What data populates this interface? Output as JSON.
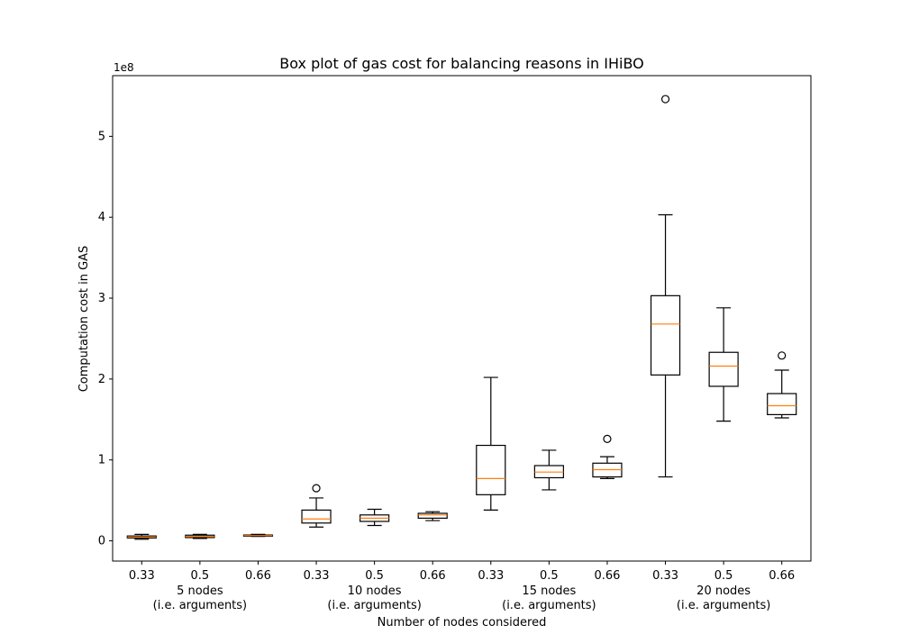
{
  "chart_data": {
    "type": "box",
    "title": "Box plot of gas cost for balancing reasons in IHiBO",
    "xlabel": "Number of nodes considered",
    "ylabel": "Computation cost in GAS",
    "y_multiplier_label": "1e8",
    "ylim": [
      -0.25,
      5.75
    ],
    "yticks": [
      0,
      1,
      2,
      3,
      4,
      5
    ],
    "ytick_labels": [
      "0",
      "1",
      "2",
      "3",
      "4",
      "5"
    ],
    "grid": false,
    "colors": {
      "box": "#000000",
      "median": "#ff7f0e",
      "axis": "#000000"
    },
    "categories": [
      "0.33",
      "0.5",
      "0.66",
      "0.33",
      "0.5",
      "0.66",
      "0.33",
      "0.5",
      "0.66",
      "0.33",
      "0.5",
      "0.66"
    ],
    "groups": [
      {
        "line1": "5 nodes",
        "line2": "(i.e. arguments)"
      },
      {
        "line1": "10 nodes",
        "line2": "(i.e. arguments)"
      },
      {
        "line1": "15 nodes",
        "line2": "(i.e. arguments)"
      },
      {
        "line1": "20 nodes",
        "line2": "(i.e. arguments)"
      }
    ],
    "boxes": [
      {
        "whisker_low": 0.02,
        "q1": 0.035,
        "median": 0.045,
        "q3": 0.06,
        "whisker_high": 0.08,
        "outliers": []
      },
      {
        "whisker_low": 0.03,
        "q1": 0.04,
        "median": 0.055,
        "q3": 0.07,
        "whisker_high": 0.08,
        "outliers": []
      },
      {
        "whisker_low": 0.055,
        "q1": 0.058,
        "median": 0.065,
        "q3": 0.072,
        "whisker_high": 0.08,
        "outliers": []
      },
      {
        "whisker_low": 0.17,
        "q1": 0.22,
        "median": 0.27,
        "q3": 0.38,
        "whisker_high": 0.53,
        "outliers": [
          0.65
        ]
      },
      {
        "whisker_low": 0.19,
        "q1": 0.24,
        "median": 0.28,
        "q3": 0.32,
        "whisker_high": 0.39,
        "outliers": []
      },
      {
        "whisker_low": 0.25,
        "q1": 0.28,
        "median": 0.32,
        "q3": 0.34,
        "whisker_high": 0.36,
        "outliers": []
      },
      {
        "whisker_low": 0.38,
        "q1": 0.57,
        "median": 0.77,
        "q3": 1.18,
        "whisker_high": 2.02,
        "outliers": []
      },
      {
        "whisker_low": 0.63,
        "q1": 0.78,
        "median": 0.85,
        "q3": 0.93,
        "whisker_high": 1.12,
        "outliers": []
      },
      {
        "whisker_low": 0.77,
        "q1": 0.79,
        "median": 0.88,
        "q3": 0.96,
        "whisker_high": 1.04,
        "outliers": [
          1.26
        ]
      },
      {
        "whisker_low": 0.79,
        "q1": 2.05,
        "median": 2.68,
        "q3": 3.03,
        "whisker_high": 4.03,
        "outliers": [
          5.46
        ]
      },
      {
        "whisker_low": 1.48,
        "q1": 1.91,
        "median": 2.16,
        "q3": 2.33,
        "whisker_high": 2.88,
        "outliers": []
      },
      {
        "whisker_low": 1.52,
        "q1": 1.56,
        "median": 1.67,
        "q3": 1.82,
        "whisker_high": 2.11,
        "outliers": [
          2.29
        ]
      }
    ]
  }
}
